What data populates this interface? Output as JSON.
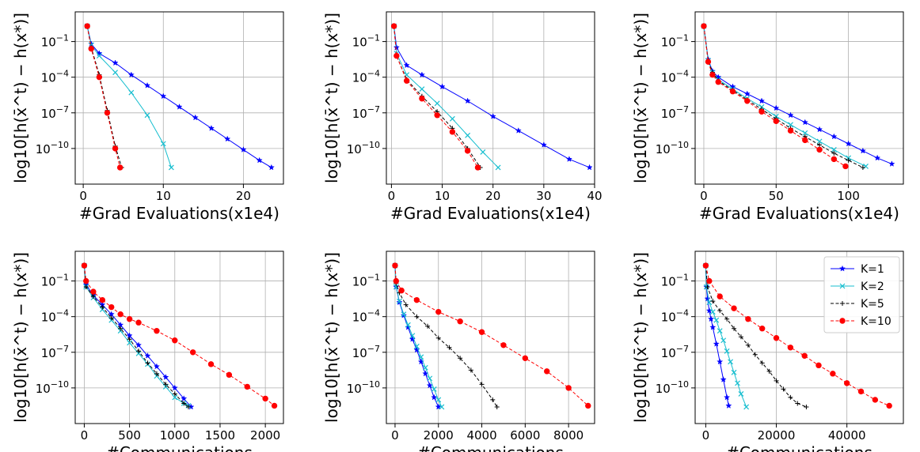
{
  "chart_data": [
    {
      "type": "line",
      "xlabel": "#Grad Evaluations(x1e4)",
      "ylabel": "log10[h(x̄^t) − h(x*)]",
      "xlim": [
        -1,
        25
      ],
      "ylim": [
        -13,
        1.5
      ],
      "xticks": [
        0,
        10,
        20
      ],
      "yticks": [
        -1,
        -4,
        -7,
        -10
      ],
      "grid": true,
      "series": [
        {
          "name": "K=1",
          "x": [
            0.5,
            1,
            2,
            4,
            6,
            8,
            10,
            12,
            14,
            16,
            18,
            20,
            22,
            23.5
          ],
          "y": [
            0.3,
            -1.2,
            -2.0,
            -2.8,
            -3.8,
            -4.7,
            -5.6,
            -6.5,
            -7.4,
            -8.3,
            -9.2,
            -10.1,
            -11.0,
            -11.6
          ]
        },
        {
          "name": "K=2",
          "x": [
            0.5,
            1,
            2,
            4,
            6,
            8,
            10,
            11
          ],
          "y": [
            0.3,
            -1.3,
            -2.2,
            -3.6,
            -5.3,
            -7.2,
            -9.6,
            -11.6
          ]
        },
        {
          "name": "K=5",
          "x": [
            0.5,
            1,
            2,
            3,
            4,
            4.8
          ],
          "y": [
            0.3,
            -1.5,
            -3.8,
            -6.8,
            -9.8,
            -11.6
          ]
        },
        {
          "name": "K=10",
          "x": [
            0.5,
            1,
            2,
            3,
            4,
            4.6
          ],
          "y": [
            0.3,
            -1.6,
            -4.0,
            -7.0,
            -10.0,
            -11.6
          ]
        }
      ]
    },
    {
      "type": "line",
      "xlabel": "#Grad Evaluations(x1e4)",
      "ylabel": "log10[h(x̄^t) − h(x*)]",
      "xlim": [
        -1,
        40
      ],
      "ylim": [
        -13,
        1.5
      ],
      "xticks": [
        0,
        10,
        20,
        30,
        40
      ],
      "yticks": [
        -1,
        -4,
        -7,
        -10
      ],
      "grid": true,
      "series": [
        {
          "name": "K=1",
          "x": [
            0.5,
            1,
            3,
            6,
            10,
            15,
            20,
            25,
            30,
            35,
            39
          ],
          "y": [
            0.3,
            -1.5,
            -3.0,
            -3.8,
            -4.8,
            -6.0,
            -7.3,
            -8.5,
            -9.7,
            -10.9,
            -11.6
          ]
        },
        {
          "name": "K=2",
          "x": [
            0.5,
            1,
            3,
            6,
            9,
            12,
            15,
            18,
            21
          ],
          "y": [
            0.3,
            -2.0,
            -3.8,
            -5.0,
            -6.2,
            -7.5,
            -8.9,
            -10.3,
            -11.6
          ]
        },
        {
          "name": "K=5",
          "x": [
            0.5,
            1,
            3,
            6,
            9,
            12,
            15,
            17.5
          ],
          "y": [
            0.3,
            -2.2,
            -4.2,
            -5.6,
            -6.9,
            -8.3,
            -10.0,
            -11.6
          ]
        },
        {
          "name": "K=10",
          "x": [
            0.5,
            1,
            3,
            6,
            9,
            12,
            15,
            17
          ],
          "y": [
            0.3,
            -2.2,
            -4.3,
            -5.8,
            -7.2,
            -8.6,
            -10.2,
            -11.6
          ]
        }
      ]
    },
    {
      "type": "line",
      "xlabel": "#Grad Evaluations(x1e4)",
      "ylabel": "log10[h(x̄^t) − h(x*)]",
      "xlim": [
        -6,
        138
      ],
      "ylim": [
        -13,
        1.5
      ],
      "xticks": [
        0,
        50,
        100
      ],
      "yticks": [
        -1,
        -4,
        -7,
        -10
      ],
      "grid": true,
      "series": [
        {
          "name": "K=1",
          "x": [
            0,
            3,
            6,
            10,
            20,
            30,
            40,
            50,
            60,
            70,
            80,
            90,
            100,
            110,
            120,
            130
          ],
          "y": [
            0.3,
            -2.5,
            -3.5,
            -4.0,
            -4.8,
            -5.4,
            -6.0,
            -6.6,
            -7.2,
            -7.8,
            -8.4,
            -9.0,
            -9.6,
            -10.2,
            -10.8,
            -11.3
          ]
        },
        {
          "name": "K=2",
          "x": [
            0,
            3,
            6,
            10,
            20,
            30,
            40,
            50,
            60,
            70,
            80,
            90,
            100,
            112
          ],
          "y": [
            0.3,
            -2.6,
            -3.6,
            -4.2,
            -5.0,
            -5.8,
            -6.5,
            -7.3,
            -8.0,
            -8.7,
            -9.4,
            -10.1,
            -10.8,
            -11.5
          ]
        },
        {
          "name": "K=5",
          "x": [
            0,
            3,
            6,
            10,
            20,
            30,
            40,
            50,
            60,
            70,
            80,
            90,
            100,
            110
          ],
          "y": [
            0.3,
            -2.6,
            -3.6,
            -4.3,
            -5.1,
            -5.9,
            -6.7,
            -7.5,
            -8.3,
            -9.0,
            -9.7,
            -10.4,
            -11.0,
            -11.6
          ]
        },
        {
          "name": "K=10",
          "x": [
            0,
            3,
            6,
            10,
            20,
            30,
            40,
            50,
            60,
            70,
            80,
            90,
            98
          ],
          "y": [
            0.3,
            -2.7,
            -3.8,
            -4.4,
            -5.2,
            -6.0,
            -6.9,
            -7.7,
            -8.5,
            -9.3,
            -10.1,
            -10.9,
            -11.5
          ]
        }
      ]
    },
    {
      "type": "line",
      "xlabel": "#Communications",
      "ylabel": "log10[h(x̄^t) − h(x*)]",
      "xlim": [
        -100,
        2200
      ],
      "ylim": [
        -13,
        1.5
      ],
      "xticks": [
        0,
        500,
        1000,
        1500,
        2000
      ],
      "yticks": [
        -1,
        -4,
        -7,
        -10
      ],
      "grid": true,
      "series": [
        {
          "name": "K=1",
          "x": [
            0,
            20,
            100,
            200,
            300,
            400,
            500,
            600,
            700,
            800,
            900,
            1000,
            1100,
            1180
          ],
          "y": [
            0.3,
            -1.3,
            -2.2,
            -3.0,
            -3.8,
            -4.7,
            -5.6,
            -6.4,
            -7.3,
            -8.2,
            -9.1,
            -10.0,
            -10.9,
            -11.6
          ]
        },
        {
          "name": "K=2",
          "x": [
            0,
            20,
            100,
            200,
            300,
            400,
            500,
            600,
            700,
            800,
            900,
            1000,
            1100,
            1150
          ],
          "y": [
            0.3,
            -1.5,
            -2.4,
            -3.4,
            -4.3,
            -5.2,
            -6.2,
            -7.1,
            -8.0,
            -9.0,
            -9.9,
            -10.8,
            -11.3,
            -11.5
          ]
        },
        {
          "name": "K=5",
          "x": [
            0,
            20,
            100,
            200,
            300,
            400,
            500,
            600,
            700,
            800,
            900,
            1000,
            1100,
            1150
          ],
          "y": [
            0.3,
            -1.5,
            -2.3,
            -3.2,
            -4.1,
            -5.0,
            -5.9,
            -6.9,
            -7.9,
            -8.8,
            -9.7,
            -10.5,
            -11.3,
            -11.6
          ]
        },
        {
          "name": "K=10",
          "x": [
            0,
            20,
            100,
            200,
            300,
            400,
            500,
            600,
            800,
            1000,
            1200,
            1400,
            1600,
            1800,
            2000,
            2100
          ],
          "y": [
            0.3,
            -1.0,
            -1.9,
            -2.6,
            -3.2,
            -3.8,
            -4.2,
            -4.5,
            -5.2,
            -6.0,
            -7.0,
            -8.0,
            -8.9,
            -9.9,
            -10.9,
            -11.5
          ]
        }
      ]
    },
    {
      "type": "line",
      "xlabel": "#Communications",
      "ylabel": "log10[h(x̄^t) − h(x*)]",
      "xlim": [
        -400,
        9200
      ],
      "ylim": [
        -13,
        1.5
      ],
      "xticks": [
        0,
        2000,
        4000,
        6000,
        8000
      ],
      "yticks": [
        -1,
        -4,
        -7,
        -10
      ],
      "grid": true,
      "series": [
        {
          "name": "K=1",
          "x": [
            0,
            50,
            200,
            400,
            600,
            800,
            1000,
            1200,
            1400,
            1600,
            1800,
            2000
          ],
          "y": [
            0.3,
            -1.5,
            -2.8,
            -3.9,
            -4.9,
            -5.9,
            -6.8,
            -7.8,
            -8.8,
            -9.8,
            -10.8,
            -11.6
          ]
        },
        {
          "name": "K=2",
          "x": [
            0,
            50,
            200,
            400,
            600,
            800,
            1000,
            1200,
            1400,
            1600,
            1800,
            2000,
            2150
          ],
          "y": [
            0.3,
            -1.5,
            -2.7,
            -3.8,
            -4.7,
            -5.6,
            -6.5,
            -7.4,
            -8.3,
            -9.2,
            -10.1,
            -11.0,
            -11.6
          ]
        },
        {
          "name": "K=5",
          "x": [
            0,
            50,
            200,
            500,
            1000,
            1500,
            2000,
            2500,
            3000,
            3500,
            4000,
            4500,
            4700
          ],
          "y": [
            0.3,
            -1.2,
            -2.0,
            -3.0,
            -4.0,
            -4.8,
            -5.8,
            -6.6,
            -7.5,
            -8.5,
            -9.7,
            -11.0,
            -11.6
          ]
        },
        {
          "name": "K=10",
          "x": [
            0,
            50,
            300,
            1000,
            2000,
            3000,
            4000,
            5000,
            6000,
            7000,
            8000,
            8900
          ],
          "y": [
            0.3,
            -1.0,
            -1.8,
            -2.6,
            -3.6,
            -4.4,
            -5.3,
            -6.4,
            -7.5,
            -8.6,
            -10.0,
            -11.5
          ]
        }
      ]
    },
    {
      "type": "line",
      "xlabel": "#Communications",
      "ylabel": "log10[h(x̄^t) − h(x*)]",
      "xlim": [
        -3000,
        56000
      ],
      "ylim": [
        -13,
        1.5
      ],
      "xticks": [
        0,
        20000,
        40000
      ],
      "yticks": [
        -1,
        -4,
        -7,
        -10
      ],
      "grid": true,
      "legend": {
        "position": "top-right",
        "entries": [
          "K=1",
          "K=2",
          "K=5",
          "K=10"
        ]
      },
      "series": [
        {
          "name": "K=1",
          "x": [
            0,
            200,
            500,
            1000,
            1500,
            2000,
            3000,
            4000,
            5000,
            6000,
            6500
          ],
          "y": [
            0.3,
            -1.5,
            -2.5,
            -3.5,
            -4.2,
            -4.9,
            -6.3,
            -7.8,
            -9.3,
            -10.8,
            -11.5
          ]
        },
        {
          "name": "K=2",
          "x": [
            0,
            200,
            1000,
            2000,
            3000,
            4000,
            5000,
            6000,
            7000,
            8000,
            9000,
            10000,
            11500
          ],
          "y": [
            0.3,
            -1.5,
            -2.8,
            -3.6,
            -4.3,
            -5.2,
            -6.0,
            -6.9,
            -7.8,
            -8.7,
            -9.6,
            -10.5,
            -11.6
          ]
        },
        {
          "name": "K=5",
          "x": [
            0,
            500,
            2000,
            4000,
            6000,
            8000,
            10000,
            12000,
            14000,
            16000,
            18000,
            20000,
            22000,
            24000,
            26000,
            28500
          ],
          "y": [
            0.3,
            -1.5,
            -2.7,
            -3.5,
            -4.2,
            -5.0,
            -5.7,
            -6.4,
            -7.2,
            -7.9,
            -8.6,
            -9.4,
            -10.1,
            -10.8,
            -11.3,
            -11.6
          ]
        },
        {
          "name": "K=10",
          "x": [
            0,
            1000,
            4000,
            8000,
            12000,
            16000,
            20000,
            24000,
            28000,
            32000,
            36000,
            40000,
            44000,
            48000,
            52000
          ],
          "y": [
            0.3,
            -1.0,
            -2.3,
            -3.3,
            -4.2,
            -5.0,
            -5.8,
            -6.6,
            -7.3,
            -8.1,
            -8.8,
            -9.6,
            -10.3,
            -11.0,
            -11.5
          ]
        }
      ]
    }
  ],
  "styles": {
    "K=1": {
      "color": "#0000ff",
      "marker": "star",
      "dash": "solid"
    },
    "K=2": {
      "color": "#17becf",
      "marker": "x",
      "dash": "solid"
    },
    "K=5": {
      "color": "#000000",
      "marker": "plus",
      "dash": "dashed"
    },
    "K=10": {
      "color": "#ff0000",
      "marker": "dot",
      "dash": "dashed"
    }
  },
  "ytick_labels": {
    "-1": "10",
    "-4": "10",
    "-7": "10",
    "-10": "10"
  },
  "ytick_exponents": {
    "-1": "−1",
    "-4": "−4",
    "-7": "−7",
    "-10": "−10"
  }
}
